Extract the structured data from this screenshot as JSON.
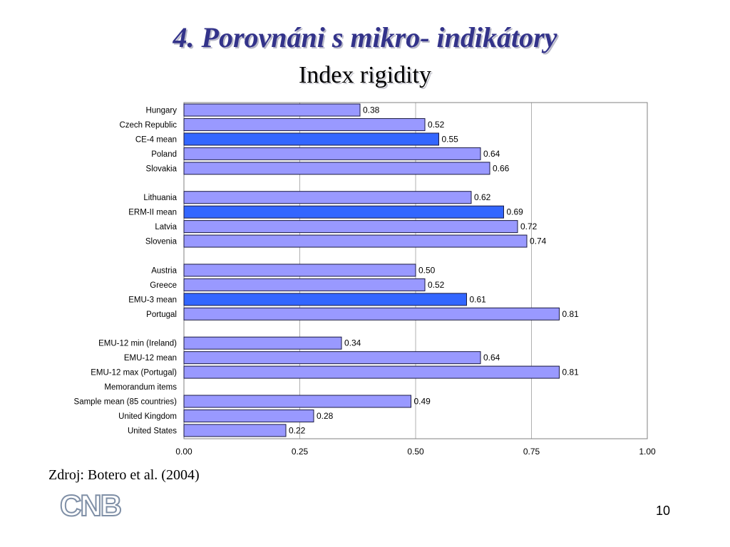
{
  "title": "4. Porovnáni s mikro- indikátory",
  "subtitle": "Index rigidity",
  "source": "Zdroj: Botero et al. (2004)",
  "page_number": "10",
  "logo_text": "CNB",
  "colors": {
    "bar": "#9999ff",
    "bar_highlight": "#3366ff",
    "title": "#33338a",
    "logo": "#7f8fa6"
  },
  "chart_data": {
    "type": "bar",
    "orientation": "horizontal",
    "title": "",
    "xlabel": "",
    "ylabel": "",
    "xlim": [
      0,
      1
    ],
    "x_ticks": [
      "0.00",
      "0.25",
      "0.50",
      "0.75",
      "1.00"
    ],
    "grid": true,
    "categories": [
      "Hungary",
      "Czech Republic",
      "CE-4 mean",
      "Poland",
      "Slovakia",
      "",
      "Lithuania",
      "ERM-II mean",
      "Latvia",
      "Slovenia",
      "",
      "Austria",
      "Greece",
      "EMU-3 mean",
      "Portugal",
      "",
      "EMU-12 min (Ireland)",
      "EMU-12 mean",
      "EMU-12 max (Portugal)",
      "Memorandum items",
      "Sample mean (85 countries)",
      "United Kingdom",
      "United States"
    ],
    "values": [
      0.38,
      0.52,
      0.55,
      0.64,
      0.66,
      null,
      0.62,
      0.69,
      0.72,
      0.74,
      null,
      0.5,
      0.52,
      0.61,
      0.81,
      null,
      0.34,
      0.64,
      0.81,
      null,
      0.49,
      0.28,
      0.22
    ],
    "value_labels": [
      "0.38",
      "0.52",
      "0.55",
      "0.64",
      "0.66",
      "",
      "0.62",
      "0.69",
      "0.72",
      "0.74",
      "",
      "0.50",
      "0.52",
      "0.61",
      "0.81",
      "",
      "0.34",
      "0.64",
      "0.81",
      "",
      "0.49",
      "0.28",
      "0.22"
    ],
    "highlighted": [
      "CE-4 mean",
      "ERM-II mean",
      "EMU-3 mean"
    ]
  }
}
